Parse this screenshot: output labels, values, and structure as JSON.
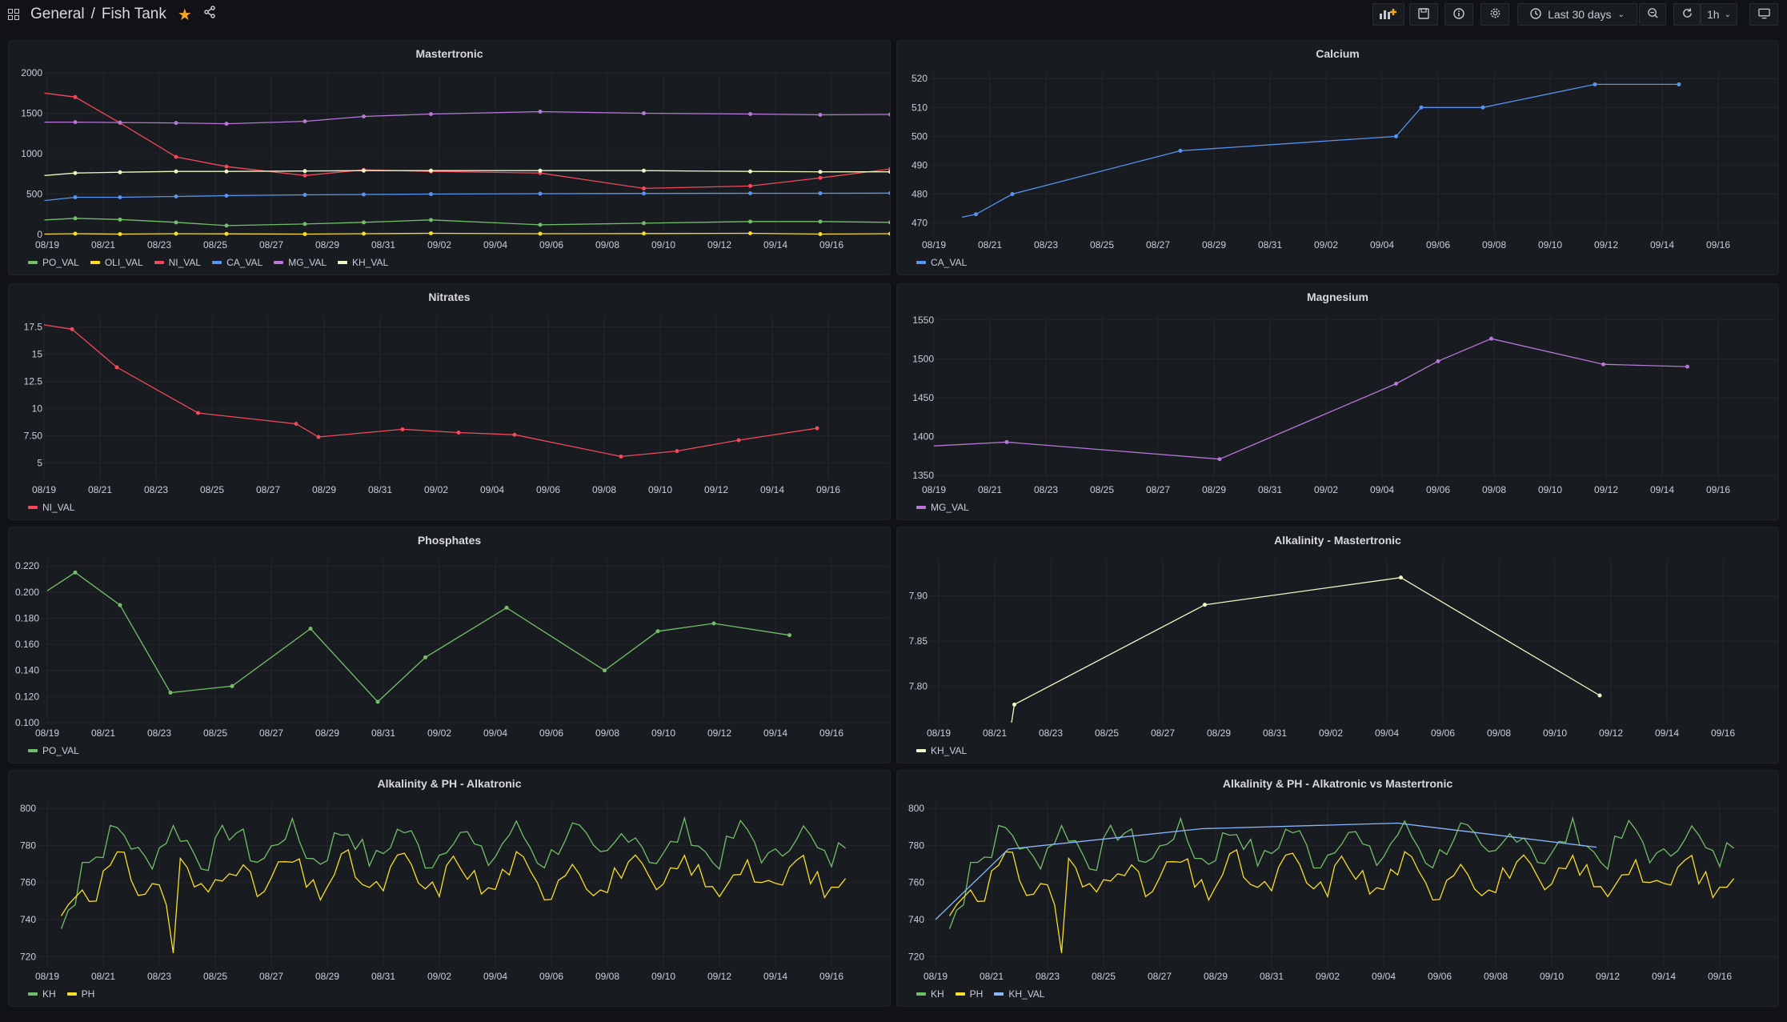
{
  "header": {
    "folder": "General",
    "separator": "/",
    "dashboard": "Fish Tank",
    "time_range": "Last 30 days",
    "refresh": "1h"
  },
  "icons": [
    "apps-icon",
    "star-icon",
    "share-icon",
    "add-panel-icon",
    "save-icon",
    "info-icon",
    "settings-icon",
    "clock-icon",
    "zoom-out-icon",
    "refresh-icon",
    "tv-icon"
  ],
  "colors": {
    "green": "#73bf69",
    "yellow": "#fade2a",
    "red": "#f2495c",
    "blue": "#5794f2",
    "purple": "#b877d9",
    "white": "#f0f7c4",
    "kh": "#73bf69",
    "ph": "#fade2a",
    "khval": "#8ab8ff"
  },
  "xticks": [
    "08/19",
    "08/21",
    "08/23",
    "08/25",
    "08/27",
    "08/29",
    "08/31",
    "09/02",
    "09/04",
    "09/06",
    "09/08",
    "09/10",
    "09/12",
    "09/14",
    "09/16"
  ],
  "panels": [
    {
      "title": "Mastertronic",
      "yticks": [
        0,
        500,
        1000,
        1500,
        2000
      ],
      "ylim": [
        0,
        2000
      ],
      "legend": [
        {
          "name": "PO_VAL",
          "color": "#73bf69"
        },
        {
          "name": "OLI_VAL",
          "color": "#fade2a"
        },
        {
          "name": "NI_VAL",
          "color": "#f2495c"
        },
        {
          "name": "CA_VAL",
          "color": "#5794f2"
        },
        {
          "name": "MG_VAL",
          "color": "#b877d9"
        },
        {
          "name": "KH_VAL",
          "color": "#f0f7c4"
        }
      ]
    },
    {
      "title": "Calcium",
      "yticks": [
        470,
        480,
        490,
        500,
        510,
        520
      ],
      "ylim": [
        466,
        522
      ],
      "legend": [
        {
          "name": "CA_VAL",
          "color": "#5794f2"
        }
      ]
    },
    {
      "title": "Nitrates",
      "yticks": [
        "5",
        "7.50",
        "10",
        "12.5",
        "15",
        "17.5"
      ],
      "ylim": [
        3.5,
        18.5
      ],
      "legend": [
        {
          "name": "NI_VAL",
          "color": "#f2495c"
        }
      ]
    },
    {
      "title": "Magnesium",
      "yticks": [
        1350,
        1400,
        1450,
        1500,
        1550
      ],
      "ylim": [
        1345,
        1555
      ],
      "legend": [
        {
          "name": "MG_VAL",
          "color": "#b877d9"
        }
      ]
    },
    {
      "title": "Phosphates",
      "yticks": [
        "0.100",
        "0.120",
        "0.140",
        "0.160",
        "0.180",
        "0.200",
        "0.220"
      ],
      "ylim": [
        0.1,
        0.225
      ],
      "legend": [
        {
          "name": "PO_VAL",
          "color": "#73bf69"
        }
      ]
    },
    {
      "title": "Alkalinity - Mastertronic",
      "yticks": [
        "7.80",
        "7.85",
        "7.90"
      ],
      "ylim": [
        7.76,
        7.94
      ],
      "legend": [
        {
          "name": "KH_VAL",
          "color": "#f0f7c4"
        }
      ]
    },
    {
      "title": "Alkalinity & PH - Alkatronic",
      "yticks": [
        720,
        740,
        760,
        780,
        800
      ],
      "ylim": [
        715,
        803
      ],
      "legend": [
        {
          "name": "KH",
          "color": "#73bf69"
        },
        {
          "name": "PH",
          "color": "#fade2a"
        }
      ]
    },
    {
      "title": "Alkalinity & PH - Alkatronic vs Mastertronic",
      "yticks": [
        720,
        740,
        760,
        780,
        800
      ],
      "ylim": [
        715,
        803
      ],
      "legend": [
        {
          "name": "KH",
          "color": "#73bf69"
        },
        {
          "name": "PH",
          "color": "#fade2a"
        },
        {
          "name": "KH_VAL",
          "color": "#8ab8ff"
        }
      ]
    }
  ],
  "chart_data": [
    {
      "type": "line",
      "title": "Mastertronic",
      "ylim": [
        0,
        2000
      ],
      "series": [
        {
          "name": "PO_VAL",
          "x": [
            -0.1,
            1,
            2.6,
            4.6,
            6.4,
            9.2,
            11.3,
            13.7,
            17.6,
            21.3,
            25.1,
            27.6,
            30.1,
            33.1,
            35.5
          ],
          "values": [
            180,
            200,
            185,
            150,
            110,
            130,
            150,
            180,
            120,
            140,
            160,
            160,
            150,
            155,
            150
          ]
        },
        {
          "name": "OLI_VAL",
          "x": [
            -0.1,
            1,
            2.6,
            4.6,
            6.4,
            9.2,
            11.3,
            13.7,
            17.6,
            21.3,
            25.1,
            27.6,
            30.1,
            33.1,
            35.5
          ],
          "values": [
            5,
            10,
            5,
            10,
            8,
            5,
            10,
            15,
            10,
            12,
            15,
            5,
            10,
            15,
            20
          ]
        },
        {
          "name": "NI_VAL",
          "x": [
            -0.1,
            1,
            2.6,
            4.6,
            6.4,
            9.2,
            11.3,
            13.7,
            17.6,
            21.3,
            25.1,
            27.6,
            30.1,
            33.1,
            35.5
          ],
          "values": [
            1750,
            1700,
            1380,
            960,
            840,
            730,
            800,
            780,
            760,
            570,
            600,
            700,
            810,
            820,
            825
          ]
        },
        {
          "name": "CA_VAL",
          "x": [
            -0.1,
            1,
            2.6,
            4.6,
            6.4,
            9.2,
            11.3,
            13.7,
            17.6,
            21.3,
            25.1,
            27.6,
            30.1,
            33.1,
            35.5
          ],
          "values": [
            420,
            460,
            460,
            470,
            480,
            490,
            495,
            500,
            505,
            508,
            510,
            510,
            512,
            515,
            518
          ]
        },
        {
          "name": "MG_VAL",
          "x": [
            -0.1,
            1,
            2.6,
            4.6,
            6.4,
            9.2,
            11.3,
            13.7,
            17.6,
            21.3,
            25.1,
            27.6,
            30.1,
            33.1,
            35.5
          ],
          "values": [
            1390,
            1390,
            1385,
            1380,
            1370,
            1400,
            1460,
            1490,
            1520,
            1500,
            1490,
            1480,
            1485,
            1490,
            1490
          ]
        },
        {
          "name": "KH_VAL",
          "x": [
            -0.1,
            1,
            2.6,
            4.6,
            6.4,
            9.2,
            11.3,
            13.7,
            17.6,
            21.3,
            25.1,
            27.6,
            30.1,
            33.1,
            35.5
          ],
          "values": [
            730,
            760,
            770,
            780,
            780,
            785,
            790,
            790,
            790,
            790,
            780,
            775,
            775,
            775,
            775
          ]
        }
      ]
    },
    {
      "type": "line",
      "title": "Calcium",
      "series": [
        {
          "name": "CA_VAL",
          "x": [
            1,
            1.5,
            2.8,
            8.8,
            16.5,
            17.4,
            19.6,
            23.6,
            26.6
          ],
          "values": [
            472,
            473,
            480,
            495,
            500,
            510,
            510,
            518,
            518
          ]
        }
      ]
    },
    {
      "type": "line",
      "title": "Nitrates",
      "series": [
        {
          "name": "NI_VAL",
          "x": [
            0,
            1,
            2.6,
            5.5,
            9,
            9.8,
            12.8,
            14.8,
            16.8,
            20.6,
            22.6,
            24.8,
            27.6
          ],
          "values": [
            17.7,
            17.3,
            13.8,
            9.6,
            8.6,
            7.4,
            8.1,
            7.8,
            7.6,
            5.6,
            6.1,
            7.1,
            8.2
          ]
        }
      ]
    },
    {
      "type": "line",
      "title": "Magnesium",
      "series": [
        {
          "name": "MG_VAL",
          "x": [
            0,
            2.6,
            10.2,
            16.5,
            18,
            19.9,
            23.9,
            26.9
          ],
          "values": [
            1388,
            1393,
            1371,
            1468,
            1497,
            1526,
            1493,
            1490
          ]
        }
      ]
    },
    {
      "type": "line",
      "title": "Phosphates",
      "series": [
        {
          "name": "PO_VAL",
          "x": [
            0,
            1,
            2.6,
            4.4,
            6.6,
            9.4,
            11.8,
            13.5,
            16.4,
            19.9,
            21.8,
            23.8,
            26.5
          ],
          "values": [
            0.201,
            0.215,
            0.19,
            0.123,
            0.128,
            0.172,
            0.116,
            0.15,
            0.188,
            0.14,
            0.17,
            0.176,
            0.167
          ]
        }
      ]
    },
    {
      "type": "line",
      "title": "Alkalinity - Mastertronic",
      "series": [
        {
          "name": "KH_VAL",
          "x": [
            2.6,
            2.7,
            9.5,
            16.5,
            23.6
          ],
          "values": [
            7.76,
            7.78,
            7.89,
            7.92,
            7.79
          ]
        }
      ]
    },
    {
      "type": "line",
      "title": "Alkalinity & PH - Alkatronic",
      "series": [
        {
          "name": "KH",
          "values_note": "dense hourly series roughly 745 to 798"
        },
        {
          "name": "PH",
          "values_note": "dense hourly series roughly 722 to 773"
        }
      ]
    },
    {
      "type": "line",
      "title": "Alkalinity & PH - Alkatronic vs Mastertronic",
      "series": [
        {
          "name": "KH"
        },
        {
          "name": "PH"
        },
        {
          "name": "KH_VAL",
          "x": [
            0,
            2.6,
            9.5,
            16.5,
            23.6
          ],
          "values": [
            740,
            778,
            789,
            792,
            779
          ]
        }
      ]
    }
  ]
}
